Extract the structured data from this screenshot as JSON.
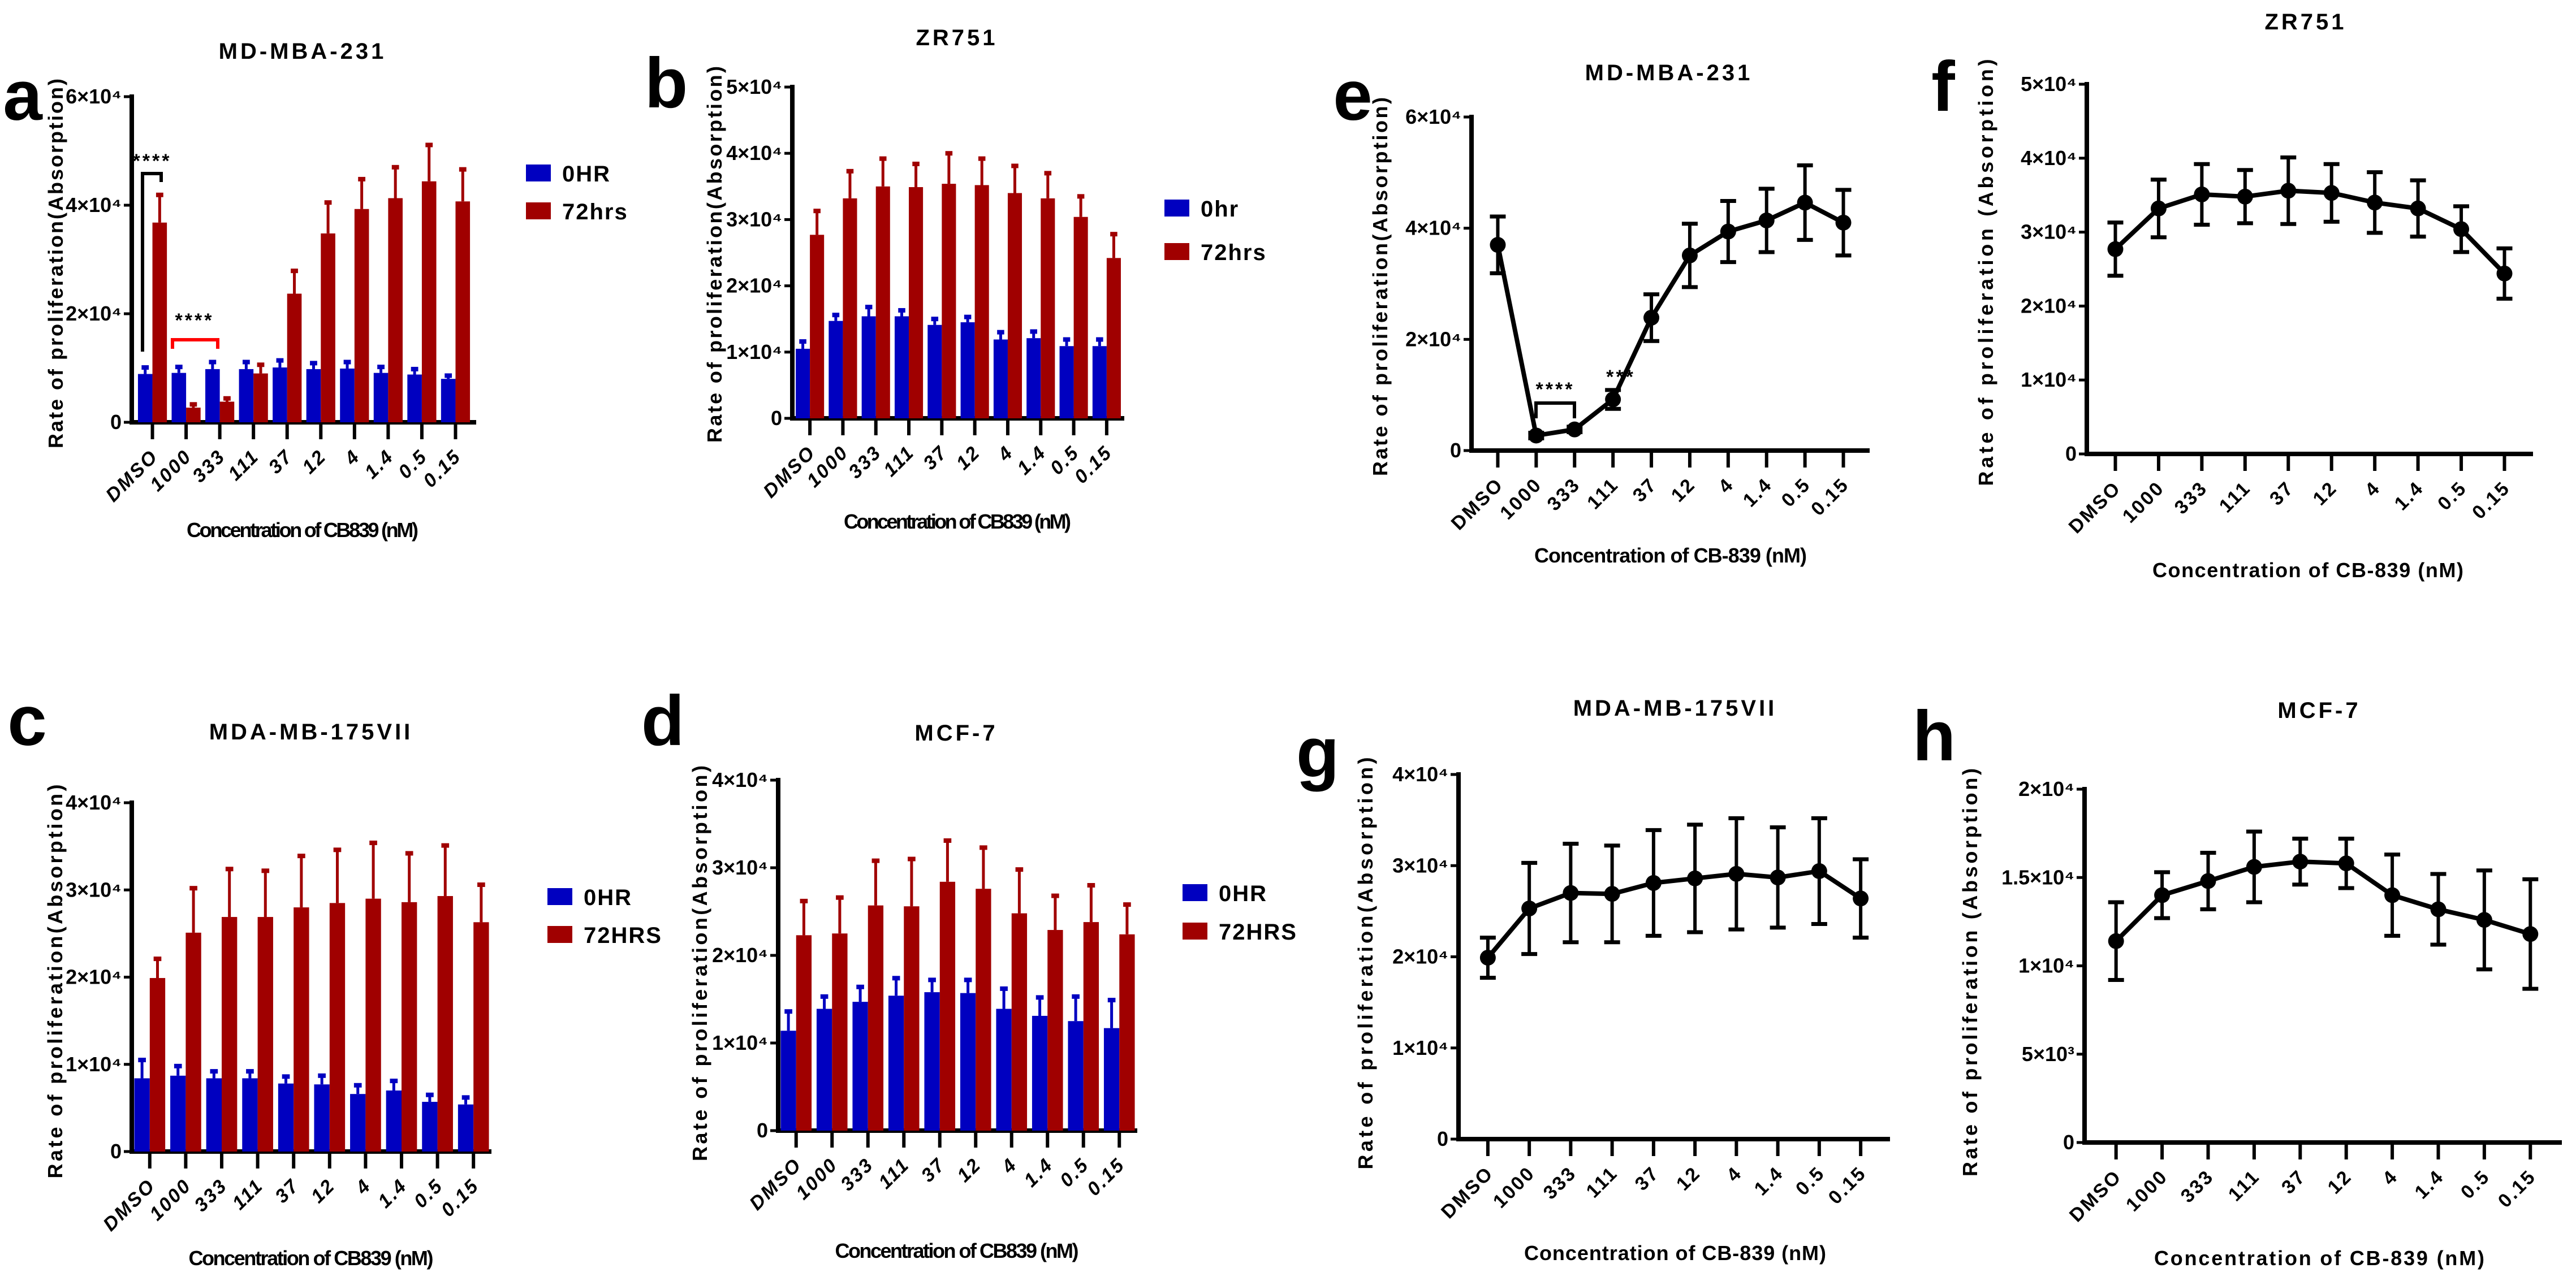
{
  "chart_data": [
    {
      "panel": "a",
      "type": "bar",
      "title": "MD-MBA-231",
      "xlabel": "Concentration of CB839 (nM)",
      "ylabel": "Rate of proliferation(Absorption)",
      "categories": [
        "DMSO",
        "1000",
        "333",
        "111",
        "37",
        "12",
        "4",
        "1.4",
        "0.5",
        "0.15"
      ],
      "ylim": [
        0,
        60000
      ],
      "yticks": [
        0,
        20000,
        40000,
        60000
      ],
      "ytick_labels": [
        "0",
        "2×10⁴",
        "4×10⁴",
        "6×10⁴"
      ],
      "legend": "right",
      "series": [
        {
          "name": "0HR",
          "color": "#0000C0",
          "values": [
            8900,
            9100,
            9800,
            9800,
            10100,
            9800,
            9900,
            9100,
            8800,
            8000
          ],
          "errors": [
            1200,
            1100,
            1300,
            1300,
            1300,
            1100,
            1200,
            1100,
            1000,
            600
          ]
        },
        {
          "name": "72hrs",
          "color": "#A00000",
          "values": [
            36800,
            2700,
            3800,
            9000,
            23700,
            34800,
            39300,
            41300,
            44400,
            40700
          ],
          "errors": [
            5100,
            600,
            600,
            1600,
            4200,
            5700,
            5500,
            5700,
            6700,
            5900
          ]
        }
      ],
      "annotations": [
        {
          "text": "****",
          "color": "#000000",
          "from": "DMSO 0HR",
          "to": "DMSO 72hrs"
        },
        {
          "text": "****",
          "color": "#FF0000",
          "from": "1000",
          "to": "333"
        }
      ]
    },
    {
      "panel": "b",
      "type": "bar",
      "title": "ZR751",
      "xlabel": "Concentration of CB839 (nM)",
      "ylabel": "Rate of proliferation(Absorption)",
      "categories": [
        "DMSO",
        "1000",
        "333",
        "111",
        "37",
        "12",
        "4",
        "1.4",
        "0.5",
        "0.15"
      ],
      "ylim": [
        0,
        50000
      ],
      "yticks": [
        0,
        10000,
        20000,
        30000,
        40000,
        50000
      ],
      "ytick_labels": [
        "0",
        "1×10⁴",
        "2×10⁴",
        "3×10⁴",
        "4×10⁴",
        "5×10⁴"
      ],
      "legend": "right",
      "series": [
        {
          "name": "0hr",
          "color": "#0000C0",
          "values": [
            10500,
            14700,
            15400,
            15400,
            14100,
            14500,
            11900,
            12100,
            10900,
            10900
          ],
          "errors": [
            1100,
            900,
            1400,
            900,
            900,
            800,
            1100,
            1000,
            1000,
            1000
          ]
        },
        {
          "name": "72hrs",
          "color": "#A00000",
          "values": [
            27700,
            33200,
            35000,
            34900,
            35400,
            35200,
            34000,
            33200,
            30400,
            24200
          ],
          "errors": [
            3600,
            4100,
            4200,
            3500,
            4600,
            4000,
            4100,
            3800,
            3100,
            3600
          ]
        }
      ]
    },
    {
      "panel": "c",
      "type": "bar",
      "title": "MDA-MB-175VII",
      "xlabel": "Concentration of CB839 (nM)",
      "ylabel": "Rate of proliferation(Absorption)",
      "categories": [
        "DMSO",
        "1000",
        "333",
        "111",
        "37",
        "12",
        "4",
        "1.4",
        "0.5",
        "0.15"
      ],
      "ylim": [
        0,
        40000
      ],
      "yticks": [
        0,
        10000,
        20000,
        30000,
        40000
      ],
      "ytick_labels": [
        "0",
        "1×10⁴",
        "2×10⁴",
        "3×10⁴",
        "4×10⁴"
      ],
      "legend": "right",
      "series": [
        {
          "name": "0HR",
          "color": "#0000C0",
          "values": [
            8400,
            8700,
            8400,
            8400,
            7800,
            7700,
            6600,
            7000,
            5700,
            5400
          ],
          "errors": [
            2100,
            1100,
            800,
            800,
            800,
            1000,
            1000,
            1100,
            800,
            800
          ]
        },
        {
          "name": "72HRS",
          "color": "#A00000",
          "values": [
            19900,
            25100,
            26900,
            26900,
            28000,
            28500,
            29000,
            28600,
            29300,
            26300
          ],
          "errors": [
            2200,
            5100,
            5500,
            5300,
            5900,
            6100,
            6400,
            5600,
            5800,
            4300
          ]
        }
      ]
    },
    {
      "panel": "d",
      "type": "bar",
      "title": "MCF-7",
      "xlabel": "Concentration of CB839 (nM)",
      "ylabel": "Rate of proliferation(Absorption)",
      "categories": [
        "DMSO",
        "1000",
        "333",
        "111",
        "37",
        "12",
        "4",
        "1.4",
        "0.5",
        "0.15"
      ],
      "ylim": [
        0,
        40000
      ],
      "yticks": [
        0,
        10000,
        20000,
        30000,
        40000
      ],
      "ytick_labels": [
        "0",
        "1×10⁴",
        "2×10⁴",
        "3×10⁴",
        "4×10⁴"
      ],
      "legend": "right",
      "series": [
        {
          "name": "0HR",
          "color": "#0000C0",
          "values": [
            11400,
            13900,
            14700,
            15400,
            15800,
            15700,
            13900,
            13100,
            12500,
            11700
          ],
          "errors": [
            2200,
            1400,
            1700,
            2000,
            1400,
            1500,
            2300,
            2100,
            2800,
            3200
          ]
        },
        {
          "name": "72HRS",
          "color": "#A00000",
          "values": [
            22300,
            22500,
            25700,
            25600,
            28400,
            27600,
            24800,
            22900,
            23800,
            22400
          ],
          "errors": [
            3900,
            4100,
            5100,
            5400,
            4700,
            4700,
            5000,
            3900,
            4200,
            3400
          ]
        }
      ]
    },
    {
      "panel": "e",
      "type": "line",
      "title": "MD-MBA-231",
      "xlabel": "Concentration of CB-839 (nM)",
      "ylabel": "Rate of proliferation(Absorption)",
      "categories": [
        "DMSO",
        "1000",
        "333",
        "111",
        "37",
        "12",
        "4",
        "1.4",
        "0.5",
        "0.15"
      ],
      "ylim": [
        0,
        60000
      ],
      "yticks": [
        0,
        20000,
        40000,
        60000
      ],
      "ytick_labels": [
        "0",
        "2×10⁴",
        "4×10⁴",
        "6×10⁴"
      ],
      "series": [
        {
          "color": "#000000",
          "values": [
            37000,
            2700,
            3800,
            9200,
            23900,
            35100,
            39400,
            41400,
            44600,
            41000
          ],
          "errors": [
            5100,
            500,
            500,
            1700,
            4200,
            5700,
            5500,
            5700,
            6700,
            5900
          ]
        }
      ],
      "annotations": [
        {
          "text": "****",
          "color": "#000000",
          "from": "1000",
          "to": "333"
        },
        {
          "text": "***",
          "color": "#000000",
          "at": "111"
        }
      ]
    },
    {
      "panel": "f",
      "type": "line",
      "title": "ZR751",
      "xlabel": "Concentration of CB-839 (nM)",
      "ylabel": "Rate of proliferation (Absorption)",
      "categories": [
        "DMSO",
        "1000",
        "333",
        "111",
        "37",
        "12",
        "4",
        "1.4",
        "0.5",
        "0.15"
      ],
      "ylim": [
        0,
        50000
      ],
      "yticks": [
        0,
        10000,
        20000,
        30000,
        40000,
        50000
      ],
      "ytick_labels": [
        "0",
        "1×10⁴",
        "2×10⁴",
        "3×10⁴",
        "4×10⁴",
        "5×10⁴"
      ],
      "series": [
        {
          "color": "#000000",
          "values": [
            27700,
            33200,
            35100,
            34800,
            35600,
            35300,
            34000,
            33200,
            30400,
            24400
          ],
          "errors": [
            3600,
            3900,
            4100,
            3600,
            4500,
            3900,
            4100,
            3800,
            3100,
            3400
          ]
        }
      ]
    },
    {
      "panel": "g",
      "type": "line",
      "title": "MDA-MB-175VII",
      "xlabel": "Concentration of CB-839 (nM)",
      "ylabel": "Rate of proliferation(Absorption)",
      "categories": [
        "DMSO",
        "1000",
        "333",
        "111",
        "37",
        "12",
        "4",
        "1.4",
        "0.5",
        "0.15"
      ],
      "ylim": [
        0,
        40000
      ],
      "yticks": [
        0,
        10000,
        20000,
        30000,
        40000
      ],
      "ytick_labels": [
        "0",
        "1×10⁴",
        "2×10⁴",
        "3×10⁴",
        "4×10⁴"
      ],
      "series": [
        {
          "color": "#000000",
          "values": [
            19900,
            25300,
            27000,
            26900,
            28100,
            28600,
            29100,
            28700,
            29400,
            26400
          ],
          "errors": [
            2200,
            5000,
            5400,
            5300,
            5800,
            5900,
            6100,
            5500,
            5800,
            4300
          ]
        }
      ]
    },
    {
      "panel": "h",
      "type": "line",
      "title": "MCF-7",
      "xlabel": "Concentration of CB-839 (nM)",
      "ylabel": "Rate of proliferation (Absorption)",
      "categories": [
        "DMSO",
        "1000",
        "333",
        "111",
        "37",
        "12",
        "4",
        "1.4",
        "0.5",
        "0.15"
      ],
      "ylim": [
        0,
        20000
      ],
      "yticks": [
        0,
        5000,
        10000,
        15000,
        20000
      ],
      "ytick_labels": [
        "0",
        "5×10³",
        "1×10⁴",
        "1.5×10⁴",
        "2×10⁴"
      ],
      "series": [
        {
          "color": "#000000",
          "values": [
            11400,
            14000,
            14800,
            15600,
            15900,
            15800,
            14000,
            13200,
            12600,
            11800
          ],
          "errors": [
            2200,
            1300,
            1600,
            2000,
            1300,
            1400,
            2300,
            2000,
            2800,
            3100
          ]
        }
      ]
    }
  ]
}
